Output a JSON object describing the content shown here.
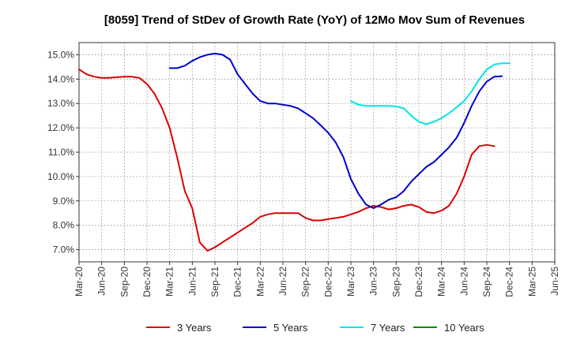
{
  "chart_data": {
    "type": "line",
    "title": "[8059]  Trend of StDev of Growth Rate (YoY) of 12Mo Mov Sum of Revenues",
    "xlabel": "",
    "ylabel": "",
    "ylim": [
      6.5,
      15.5
    ],
    "yticks": [
      7.0,
      8.0,
      9.0,
      10.0,
      11.0,
      12.0,
      13.0,
      14.0,
      15.0
    ],
    "ytick_labels": [
      "7.0%",
      "8.0%",
      "9.0%",
      "10.0%",
      "11.0%",
      "12.0%",
      "13.0%",
      "14.0%",
      "15.0%"
    ],
    "x_range": [
      0,
      21
    ],
    "x_tick_labels": [
      "Mar-20",
      "Jun-20",
      "Sep-20",
      "Dec-20",
      "Mar-21",
      "Jun-21",
      "Sep-21",
      "Dec-21",
      "Mar-22",
      "Jun-22",
      "Sep-22",
      "Dec-22",
      "Mar-23",
      "Jun-23",
      "Sep-23",
      "Dec-23",
      "Mar-24",
      "Jun-24",
      "Sep-24",
      "Dec-24",
      "Mar-25",
      "Jun-25"
    ],
    "grid": true,
    "legend_position": "bottom",
    "series": [
      {
        "name": "3 Years",
        "color": "#dd0000",
        "x": [
          0,
          0.33,
          0.67,
          1,
          1.33,
          1.67,
          2,
          2.33,
          2.67,
          3,
          3.33,
          3.67,
          4,
          4.33,
          4.67,
          5,
          5.33,
          5.67,
          6,
          6.33,
          6.67,
          7,
          7.33,
          7.67,
          8,
          8.33,
          8.67,
          9,
          9.33,
          9.67,
          10,
          10.33,
          10.67,
          11,
          11.33,
          11.67,
          12,
          12.33,
          12.67,
          13,
          13.33,
          13.67,
          14,
          14.33,
          14.67,
          15,
          15.33,
          15.67,
          16,
          16.33,
          16.67,
          17,
          17.33,
          17.67,
          18,
          18.33,
          18.67,
          19,
          19.33,
          19.67,
          20
        ],
        "values": [
          14.4,
          14.2,
          14.1,
          14.05,
          14.05,
          14.08,
          14.1,
          14.1,
          14.05,
          13.8,
          13.4,
          12.8,
          12.0,
          10.8,
          9.4,
          8.7,
          7.3,
          6.95,
          7.1,
          7.3,
          7.5,
          7.7,
          7.9,
          8.1,
          8.35,
          8.45,
          8.5,
          8.5,
          8.5,
          8.5,
          8.3,
          8.2,
          8.2,
          8.25,
          8.3,
          8.35,
          8.45,
          8.55,
          8.7,
          8.8,
          8.75,
          8.65,
          8.7,
          8.8,
          8.85,
          8.75,
          8.55,
          8.5,
          8.6,
          8.8,
          9.3,
          10.0,
          10.9,
          11.25,
          11.3,
          11.25,
          null,
          null,
          null,
          null,
          null
        ]
      },
      {
        "name": "5 Years",
        "color": "#0000cc",
        "x": [
          4,
          4.33,
          4.67,
          5,
          5.33,
          5.67,
          6,
          6.33,
          6.67,
          7,
          7.33,
          7.67,
          8,
          8.33,
          8.67,
          9,
          9.33,
          9.67,
          10,
          10.33,
          10.67,
          11,
          11.33,
          11.67,
          12,
          12.33,
          12.67,
          13,
          13.33,
          13.67,
          14,
          14.33,
          14.67,
          15,
          15.33,
          15.67,
          16,
          16.33,
          16.67,
          17,
          17.33,
          17.67,
          18,
          18.33,
          18.67,
          19,
          19.33
        ],
        "values": [
          14.45,
          14.45,
          14.55,
          14.75,
          14.9,
          15.0,
          15.05,
          15.0,
          14.8,
          14.2,
          13.8,
          13.4,
          13.1,
          13.0,
          13.0,
          12.95,
          12.9,
          12.8,
          12.6,
          12.4,
          12.1,
          11.8,
          11.4,
          10.8,
          9.9,
          9.3,
          8.85,
          8.7,
          8.85,
          9.05,
          9.15,
          9.4,
          9.8,
          10.1,
          10.4,
          10.6,
          10.9,
          11.2,
          11.6,
          12.2,
          12.9,
          13.5,
          13.9,
          14.1,
          14.12,
          null,
          null
        ]
      },
      {
        "name": "7 Years",
        "color": "#00e5e5",
        "x": [
          12,
          12.33,
          12.67,
          13,
          13.33,
          13.67,
          14,
          14.33,
          14.67,
          15,
          15.33,
          15.67,
          16,
          16.33,
          16.67,
          17,
          17.33,
          17.67,
          18,
          18.33,
          18.67,
          19
        ],
        "values": [
          13.1,
          12.95,
          12.9,
          12.9,
          12.9,
          12.9,
          12.88,
          12.8,
          12.5,
          12.25,
          12.15,
          12.25,
          12.4,
          12.6,
          12.85,
          13.1,
          13.5,
          14.0,
          14.4,
          14.6,
          14.65,
          14.65
        ]
      },
      {
        "name": "10 Years",
        "color": "#008800",
        "x": [],
        "values": []
      }
    ]
  }
}
